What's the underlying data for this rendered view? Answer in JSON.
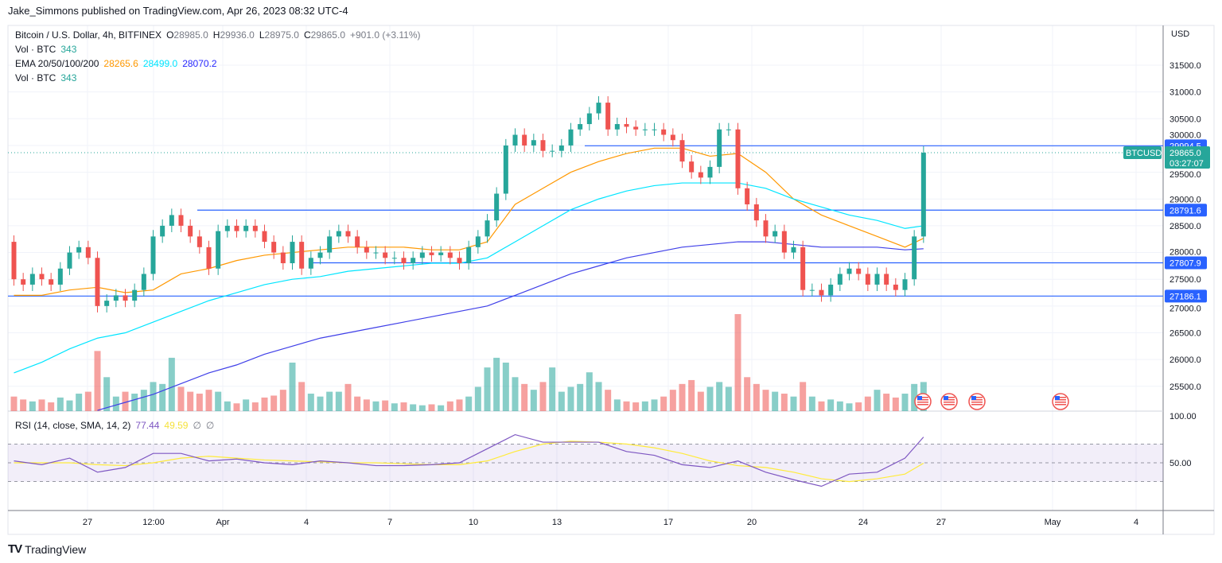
{
  "header": {
    "publisher": "Jake_Simmons published on TradingView.com, Apr 26, 2023 08:32 UTC-4"
  },
  "legend": {
    "symbol": "Bitcoin / U.S. Dollar, 4h, BITFINEX",
    "o_label": "O",
    "o": "28985.0",
    "h_label": "H",
    "h": "29936.0",
    "l_label": "L",
    "l": "28975.0",
    "c_label": "C",
    "c": "29865.0",
    "change": "+901.0 (+3.11%)",
    "vol_label": "Vol · BTC",
    "vol": "343",
    "ema_label": "EMA 20/50/100/200",
    "ema1": "28265.6",
    "ema2": "28499.0",
    "ema3": "28070.2",
    "vol2_label": "Vol · BTC",
    "vol2": "343",
    "rsi_label": "RSI (14, close, SMA, 14, 2)",
    "rsi": "77.44",
    "rsi_sma": "49.59",
    "na1": "∅",
    "na2": "∅"
  },
  "price_axis": {
    "currency": "USD",
    "ticks": [
      "31500.0",
      "31000.0",
      "30500.0",
      "30000.0",
      "29500.0",
      "29000.0",
      "28500.0",
      "28000.0",
      "27500.0",
      "27000.0",
      "26500.0",
      "26000.0",
      "25500.0"
    ],
    "rsi_ticks": [
      "100.00",
      "50.00"
    ],
    "symbol_tag": "BTCUSD",
    "last_price": "29865.0",
    "countdown": "03:27:07"
  },
  "levels": [
    {
      "label": "29994.5",
      "value": 29994.5
    },
    {
      "label": "28791.6",
      "value": 28791.6
    },
    {
      "label": "27807.9",
      "value": 27807.9
    },
    {
      "label": "27186.1",
      "value": 27186.1
    }
  ],
  "time_axis": [
    "27",
    "12:00",
    "Apr",
    "4",
    "7",
    "10",
    "13",
    "17",
    "20",
    "24",
    "27",
    "May",
    "4"
  ],
  "footer": {
    "logo": "TradingView"
  },
  "colors": {
    "up": "#26a69a",
    "down": "#ef5350",
    "ema50": "#ff9800",
    "ema100": "#00ffff",
    "ema200": "#2962ff",
    "rsi": "#7e57c2",
    "rsi_sma": "#ffeb3b",
    "level": "#2962ff"
  },
  "chart_data": {
    "type": "candlestick",
    "interval_per_value": "8h",
    "ylim": [
      25500,
      31500
    ],
    "days": [
      {
        "date": "Mar 24",
        "closes": [
          28200,
          27500,
          27400
        ],
        "volume": [
          25,
          15,
          12
        ]
      },
      {
        "date": "Mar 25",
        "closes": [
          27600,
          27500,
          27400
        ],
        "volume": [
          10,
          12,
          9
        ]
      },
      {
        "date": "Mar 26",
        "closes": [
          27700,
          28000,
          28100
        ],
        "volume": [
          14,
          11,
          18
        ]
      },
      {
        "date": "Mar 27",
        "closes": [
          27900,
          27000,
          27100
        ],
        "volume": [
          20,
          62,
          35
        ]
      },
      {
        "date": "Mar 28",
        "closes": [
          27200,
          27100,
          27300
        ],
        "volume": [
          15,
          20,
          18
        ]
      },
      {
        "date": "Mar 29",
        "closes": [
          27600,
          28300,
          28500
        ],
        "volume": [
          22,
          30,
          28
        ]
      },
      {
        "date": "Mar 30",
        "closes": [
          28700,
          28500,
          28300
        ],
        "volume": [
          55,
          25,
          20
        ]
      },
      {
        "date": "Mar 31",
        "closes": [
          28100,
          27700,
          28400
        ],
        "volume": [
          18,
          22,
          20
        ]
      },
      {
        "date": "Apr 1",
        "closes": [
          28500,
          28400,
          28500
        ],
        "volume": [
          10,
          8,
          12
        ]
      },
      {
        "date": "Apr 2",
        "closes": [
          28400,
          28200,
          28000
        ],
        "volume": [
          9,
          14,
          16
        ]
      },
      {
        "date": "Apr 3",
        "closes": [
          27800,
          28200,
          27700
        ],
        "volume": [
          22,
          50,
          30
        ]
      },
      {
        "date": "Apr 4",
        "closes": [
          27900,
          28000,
          28300
        ],
        "volume": [
          18,
          15,
          20
        ]
      },
      {
        "date": "Apr 5",
        "closes": [
          28400,
          28300,
          28100
        ],
        "volume": [
          20,
          28,
          15
        ]
      },
      {
        "date": "Apr 6",
        "closes": [
          28000,
          28000,
          27900
        ],
        "volume": [
          12,
          10,
          11
        ]
      },
      {
        "date": "Apr 7",
        "closes": [
          27900,
          27800,
          27900
        ],
        "volume": [
          8,
          9,
          7
        ]
      },
      {
        "date": "Apr 8",
        "closes": [
          28000,
          27950,
          28000
        ],
        "volume": [
          6,
          7,
          6
        ]
      },
      {
        "date": "Apr 9",
        "closes": [
          27900,
          27800,
          28100
        ],
        "volume": [
          10,
          12,
          15
        ]
      },
      {
        "date": "Apr 10",
        "closes": [
          28300,
          28600,
          29100
        ],
        "volume": [
          25,
          45,
          55
        ]
      },
      {
        "date": "Apr 11",
        "closes": [
          30000,
          30200,
          30000
        ],
        "volume": [
          50,
          35,
          28
        ]
      },
      {
        "date": "Apr 12",
        "closes": [
          30100,
          29900,
          29900
        ],
        "volume": [
          22,
          30,
          45
        ]
      },
      {
        "date": "Apr 13",
        "closes": [
          30000,
          30300,
          30400
        ],
        "volume": [
          20,
          25,
          28
        ]
      },
      {
        "date": "Apr 14",
        "closes": [
          30600,
          30800,
          30300
        ],
        "volume": [
          40,
          30,
          22
        ]
      },
      {
        "date": "Apr 15",
        "closes": [
          30400,
          30350,
          30300
        ],
        "volume": [
          12,
          10,
          9
        ]
      },
      {
        "date": "Apr 16",
        "closes": [
          30300,
          30300,
          30200
        ],
        "volume": [
          10,
          12,
          15
        ]
      },
      {
        "date": "Apr 17",
        "closes": [
          30100,
          29700,
          29500
        ],
        "volume": [
          22,
          28,
          32
        ]
      },
      {
        "date": "Apr 18",
        "closes": [
          29400,
          29600,
          30300
        ],
        "volume": [
          20,
          25,
          30
        ]
      },
      {
        "date": "Apr 19",
        "closes": [
          30300,
          29200,
          28900
        ],
        "volume": [
          25,
          100,
          35
        ]
      },
      {
        "date": "Apr 20",
        "closes": [
          28600,
          28300,
          28400
        ],
        "volume": [
          28,
          22,
          20
        ]
      },
      {
        "date": "Apr 21",
        "closes": [
          28000,
          28100,
          27300
        ],
        "volume": [
          18,
          15,
          30
        ]
      },
      {
        "date": "Apr 22",
        "closes": [
          27300,
          27200,
          27400
        ],
        "volume": [
          15,
          10,
          12
        ]
      },
      {
        "date": "Apr 23",
        "closes": [
          27600,
          27700,
          27600
        ],
        "volume": [
          10,
          8,
          9
        ]
      },
      {
        "date": "Apr 24",
        "closes": [
          27400,
          27600,
          27400
        ],
        "volume": [
          15,
          22,
          18
        ]
      },
      {
        "date": "Apr 25",
        "closes": [
          27300,
          27500,
          28300
        ],
        "volume": [
          14,
          18,
          28
        ]
      },
      {
        "date": "Apr 26",
        "closes": [
          29865
        ],
        "volume": [
          30
        ]
      }
    ],
    "ema": [
      {
        "name": "28265.6",
        "color": "#ff9800",
        "values": [
          27200,
          27200,
          27300,
          27350,
          27250,
          27300,
          27600,
          27700,
          27850,
          27950,
          28000,
          28050,
          28100,
          28100,
          28100,
          28050,
          28050,
          28200,
          28900,
          29200,
          29500,
          29700,
          29850,
          29950,
          29950,
          29800,
          29850,
          29500,
          29000,
          28700,
          28500,
          28300,
          28100,
          28265.6
        ]
      },
      {
        "name": "28499.0",
        "color": "#00e5ff",
        "values": [
          25750,
          25950,
          26200,
          26400,
          26500,
          26700,
          26900,
          27100,
          27250,
          27400,
          27500,
          27550,
          27650,
          27700,
          27750,
          27800,
          27800,
          27900,
          28200,
          28500,
          28800,
          29000,
          29150,
          29250,
          29300,
          29300,
          29300,
          29200,
          29000,
          28850,
          28700,
          28600,
          28450,
          28499
        ]
      },
      {
        "name": "28070.2",
        "color": "#3f3fe8",
        "values": [
          null,
          null,
          null,
          25050,
          25200,
          25350,
          25550,
          25750,
          25900,
          26100,
          26250,
          26400,
          26500,
          26600,
          26700,
          26800,
          26900,
          27000,
          27200,
          27400,
          27600,
          27750,
          27900,
          28000,
          28100,
          28150,
          28200,
          28200,
          28150,
          28100,
          28100,
          28100,
          28050,
          28070.2
        ]
      }
    ],
    "rsi": {
      "ylim": [
        0,
        100
      ],
      "bands": [
        30,
        70
      ],
      "values": [
        52,
        48,
        55,
        40,
        45,
        60,
        60,
        52,
        54,
        50,
        48,
        52,
        50,
        47,
        47,
        48,
        50,
        65,
        80,
        72,
        72,
        72,
        62,
        58,
        48,
        45,
        52,
        40,
        32,
        25,
        38,
        40,
        55,
        77.44
      ],
      "sma": [
        50,
        50,
        50,
        48,
        47,
        50,
        55,
        57,
        55,
        53,
        52,
        51,
        50,
        50,
        49,
        48,
        48,
        52,
        62,
        70,
        73,
        72,
        70,
        66,
        60,
        52,
        47,
        45,
        40,
        33,
        30,
        33,
        38,
        49.59
      ]
    }
  }
}
